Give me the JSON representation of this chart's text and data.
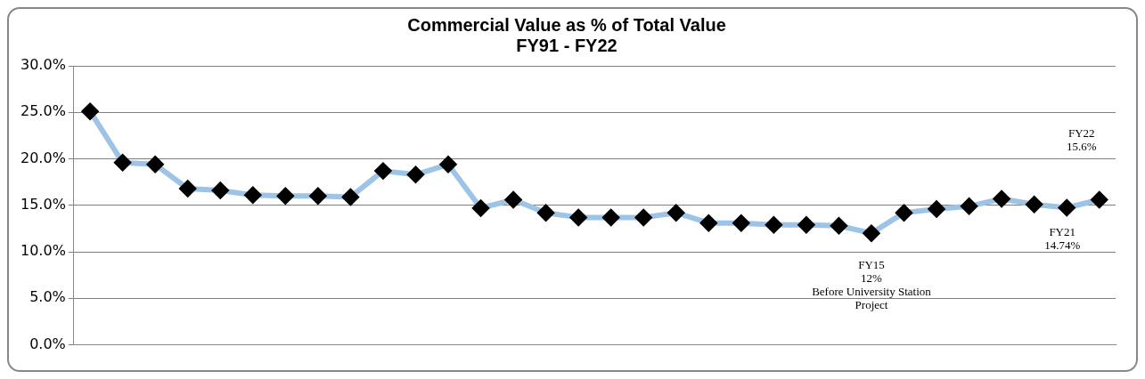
{
  "chart_data": {
    "type": "line",
    "title": "Commercial Value as % of Total Value\nFY91 - FY22",
    "categories": [
      null,
      null,
      null,
      null,
      null,
      null,
      null,
      null,
      null,
      null,
      null,
      null,
      null,
      null,
      null,
      null,
      null,
      null,
      null,
      null,
      null,
      null,
      null,
      null,
      null,
      null,
      null,
      null,
      null,
      null,
      null,
      null
    ],
    "series": [
      {
        "color": "#9dc3e6",
        "values": [
          25.1,
          19.6,
          19.4,
          16.8,
          16.6,
          16.1,
          16.0,
          16.0,
          15.9,
          18.7,
          18.3,
          19.4,
          14.7,
          15.6,
          14.2,
          13.7,
          13.7,
          13.7,
          14.2,
          13.1,
          13.1,
          12.9,
          12.9,
          12.8,
          12.0,
          14.2,
          14.6,
          14.9,
          15.7,
          15.1,
          14.74,
          15.6
        ]
      }
    ],
    "ylim": [
      0,
      30
    ],
    "yticks": [
      {
        "value": 0,
        "label": "0.0%"
      },
      {
        "value": 5,
        "label": "5.0%"
      },
      {
        "value": 10,
        "label": "10.0%"
      },
      {
        "value": 15,
        "label": "15.0%"
      },
      {
        "value": 20,
        "label": "20.0%"
      },
      {
        "value": 25,
        "label": "25.0%"
      },
      {
        "value": 30,
        "label": "30.0%"
      }
    ],
    "grid": "y",
    "legend": false,
    "marker": "diamond",
    "line_style": "solid",
    "annotations": [
      "FY15\n12%\nBefore University Station\nProject",
      "FY21\n14.74%",
      "FY22\n15.6%"
    ]
  }
}
